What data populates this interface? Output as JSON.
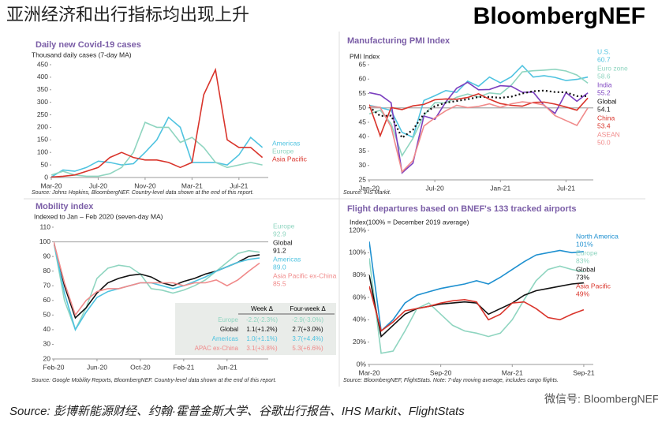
{
  "header": {
    "title": "亚洲经济和出行指标均出现上升",
    "brand": "BloombergNEF"
  },
  "footer": {
    "source": "Source: 彭博新能源财经、约翰·霍普金斯大学、谷歌出行报告、IHS Markit、FlightStats",
    "watermark": "微信号: BloombergNEF"
  },
  "chart_data": [
    {
      "type": "line",
      "title": "Daily new Covid-19 cases",
      "subtitle": "Thousand daily cases (7-day MA)",
      "source": "Source: Johns Hopkins, BloombergNEF. Country-level data shown at the end of this report.",
      "x": [
        0,
        1,
        2,
        3,
        4,
        5,
        6,
        7,
        8,
        9,
        10,
        11,
        12,
        13,
        14,
        15,
        16,
        17,
        18
      ],
      "xlim": [
        0,
        18.5
      ],
      "xticks": [
        {
          "value": 0,
          "label": "Mar-20"
        },
        {
          "value": 4,
          "label": "Jul-20"
        },
        {
          "value": 8,
          "label": "Nov-20"
        },
        {
          "value": 12,
          "label": "Mar-21"
        },
        {
          "value": 16,
          "label": "Jul-21"
        }
      ],
      "ylim": [
        0,
        450
      ],
      "yticks": [
        0,
        50,
        100,
        150,
        200,
        250,
        300,
        350,
        400,
        450
      ],
      "series": [
        {
          "name": "Americas",
          "color": "#4fc3e0",
          "values": [
            2,
            30,
            25,
            40,
            65,
            60,
            50,
            55,
            100,
            150,
            240,
            200,
            60,
            60,
            60,
            50,
            90,
            160,
            120
          ]
        },
        {
          "name": "Europe",
          "color": "#8fd5c0",
          "values": [
            10,
            25,
            10,
            5,
            5,
            15,
            40,
            100,
            220,
            200,
            200,
            140,
            160,
            120,
            60,
            40,
            50,
            60,
            50
          ]
        },
        {
          "name": "Asia Pacific",
          "color": "#d9342b",
          "values": [
            2,
            5,
            10,
            25,
            40,
            80,
            100,
            80,
            70,
            70,
            60,
            40,
            60,
            330,
            430,
            150,
            120,
            120,
            80
          ]
        }
      ]
    },
    {
      "type": "line",
      "title": "Manufacturing PMI Index",
      "subtitle": "PMI Index",
      "source": "Source: IHS Markit.",
      "x": [
        0,
        1,
        2,
        3,
        4,
        5,
        6,
        7,
        8,
        9,
        10,
        11,
        12,
        13,
        14,
        15,
        16,
        17,
        18,
        19,
        20
      ],
      "xlim": [
        0,
        20.5
      ],
      "xticks": [
        {
          "value": 0,
          "label": "Jan-20"
        },
        {
          "value": 6,
          "label": "Jul-20"
        },
        {
          "value": 12,
          "label": "Jan-21"
        },
        {
          "value": 18,
          "label": "Jul-21"
        }
      ],
      "ylim": [
        25,
        65
      ],
      "yticks": [
        25,
        30,
        35,
        40,
        45,
        50,
        55,
        60,
        65
      ],
      "refline": 50,
      "series": [
        {
          "name": "U.S.",
          "end_label": "60.7",
          "color": "#4fc3e0",
          "values": [
            50.9,
            50.1,
            49.1,
            41.5,
            39.8,
            52.6,
            54.2,
            56,
            55.4,
            59.3,
            57.5,
            60.7,
            58.7,
            60.8,
            64.7,
            60.7,
            61.2,
            60.6,
            59.5,
            59.9,
            60.7
          ]
        },
        {
          "name": "Euro zone",
          "end_label": "58.6",
          "color": "#8fd5c0",
          "values": [
            47.9,
            49.2,
            44.5,
            33.4,
            39.4,
            47.4,
            51.8,
            51.7,
            53.7,
            54.8,
            53.8,
            55.2,
            54.8,
            57.9,
            62.5,
            62.9,
            63.1,
            63.4,
            62.8,
            61.4,
            58.6
          ]
        },
        {
          "name": "India",
          "end_label": "55.2",
          "color": "#7b3fbf",
          "values": [
            55.3,
            54.5,
            51.8,
            27.4,
            30.8,
            47.2,
            46,
            52,
            56.8,
            58.9,
            56.3,
            56.4,
            57.7,
            57.5,
            55.4,
            55.5,
            50.8,
            48.1,
            55.3,
            52.3,
            55.2
          ]
        },
        {
          "name": "Global",
          "end_label": "54.1",
          "color": "#111111",
          "dotted": true,
          "values": [
            50.4,
            47.2,
            47.3,
            39.6,
            42.4,
            47.9,
            50.6,
            51.8,
            52.4,
            53,
            53.8,
            53.8,
            53.5,
            53.9,
            55,
            55.8,
            56,
            55.5,
            55.4,
            54.1,
            54.1
          ]
        },
        {
          "name": "China",
          "end_label": "53.4",
          "color": "#d9342b",
          "values": [
            51.1,
            40.3,
            50.1,
            49.4,
            50.7,
            51.2,
            52.8,
            53.1,
            53,
            53.6,
            54.9,
            53,
            51.5,
            50.9,
            50.6,
            51.9,
            52,
            51.3,
            50.3,
            49.2,
            53.4
          ]
        },
        {
          "name": "ASEAN",
          "end_label": "50.0",
          "color": "#f08a8a",
          "values": [
            50.5,
            50.2,
            43.4,
            27.8,
            31.7,
            43.7,
            46.5,
            49,
            50.9,
            50.1,
            50.5,
            51.4,
            50.2,
            51.4,
            52.1,
            51.7,
            51,
            47.3,
            45.6,
            43.9,
            50
          ]
        }
      ]
    },
    {
      "type": "line",
      "title": "Mobility index",
      "subtitle": "Indexed to Jan – Feb 2020 (seven-day MA)",
      "source": "Source: Google Mobility Reports, BloombergNEF. Country-level data shown at the end of this report.",
      "x": [
        0,
        1,
        2,
        3,
        4,
        5,
        6,
        7,
        8,
        9,
        10,
        11,
        12,
        13,
        14,
        15,
        16,
        17,
        18,
        19
      ],
      "xlim": [
        0,
        19.8
      ],
      "xticks": [
        {
          "value": 0,
          "label": "Feb-20"
        },
        {
          "value": 4,
          "label": "Jun-20"
        },
        {
          "value": 8,
          "label": "Oct-20"
        },
        {
          "value": 12,
          "label": "Feb-21"
        },
        {
          "value": 16,
          "label": "Jun-21"
        }
      ],
      "ylim": [
        20,
        110
      ],
      "yticks": [
        20,
        30,
        40,
        50,
        60,
        70,
        80,
        90,
        100,
        110
      ],
      "refline": 100,
      "series": [
        {
          "name": "Europe",
          "end_label": "92.9",
          "color": "#8fd5c0",
          "values": [
            100,
            60,
            40,
            55,
            75,
            82,
            84,
            83,
            78,
            68,
            67,
            65,
            67,
            70,
            74,
            80,
            86,
            92,
            94,
            92.9
          ]
        },
        {
          "name": "Global",
          "end_label": "91.2",
          "color": "#111111",
          "values": [
            100,
            70,
            48,
            55,
            65,
            72,
            75,
            77,
            78,
            76,
            72,
            70,
            73,
            75,
            78,
            80,
            83,
            86,
            90,
            91.2
          ]
        },
        {
          "name": "Americas",
          "end_label": "89.0",
          "color": "#4fc3e0",
          "values": [
            100,
            65,
            40,
            52,
            62,
            66,
            68,
            70,
            72,
            72,
            70,
            68,
            70,
            73,
            76,
            80,
            83,
            86,
            88,
            89
          ]
        },
        {
          "name": "Asia Pacific ex-China",
          "end_label": "85.5",
          "color": "#f08a8a",
          "values": [
            100,
            72,
            50,
            60,
            66,
            68,
            68,
            70,
            72,
            72,
            72,
            72,
            70,
            72,
            72,
            74,
            70,
            74,
            80,
            85.5
          ]
        }
      ],
      "table": {
        "header": [
          "Week Δ",
          "Four-week Δ"
        ],
        "rows": [
          [
            "Europe",
            "-2.2(-2.3%)",
            "-2.9(-3.0%)"
          ],
          [
            "Global",
            "1.1(+1.2%)",
            "2.7(+3.0%)"
          ],
          [
            "Americas",
            "1.0(+1.1%)",
            "3.7(+4.4%)"
          ],
          [
            "APAC ex-China",
            "3.1(+3.8%)",
            "5.3(+6.6%)"
          ]
        ]
      }
    },
    {
      "type": "line",
      "title": "Flight departures based on BNEF's 133 tracked airports",
      "subtitle": "Index(100% = December 2019 average)",
      "source": "Source: BloombergNEF, FlightStats. Note: 7-day moving average, includes cargo flights.",
      "x": [
        0,
        1,
        2,
        3,
        4,
        5,
        6,
        7,
        8,
        9,
        10,
        11,
        12,
        13,
        14,
        15,
        16,
        17,
        18
      ],
      "xlim": [
        0,
        18.8
      ],
      "xticks": [
        {
          "value": 0,
          "label": "Mar-20"
        },
        {
          "value": 6,
          "label": "Sep-20"
        },
        {
          "value": 12,
          "label": "Mar-21"
        },
        {
          "value": 18,
          "label": "Sep-21"
        }
      ],
      "ylim": [
        0,
        120
      ],
      "yticks": [
        {
          "value": 0,
          "label": "0%"
        },
        {
          "value": 20,
          "label": "20%"
        },
        {
          "value": 40,
          "label": "40%"
        },
        {
          "value": 60,
          "label": "60%"
        },
        {
          "value": 80,
          "label": "80%"
        },
        {
          "value": 100,
          "label": "100%"
        },
        {
          "value": 120,
          "label": "120%"
        }
      ],
      "series": [
        {
          "name": "North America",
          "end_label": "101%",
          "color": "#1e90d0",
          "values": [
            110,
            30,
            40,
            55,
            62,
            65,
            68,
            70,
            72,
            75,
            72,
            78,
            85,
            92,
            98,
            100,
            102,
            100,
            101
          ]
        },
        {
          "name": "Europe",
          "end_label": "83%",
          "color": "#8fd5c0",
          "values": [
            95,
            10,
            12,
            30,
            50,
            55,
            45,
            35,
            30,
            28,
            25,
            28,
            40,
            58,
            75,
            85,
            88,
            85,
            83
          ]
        },
        {
          "name": "Global",
          "end_label": "73%",
          "color": "#111111",
          "values": [
            80,
            25,
            35,
            45,
            50,
            52,
            54,
            55,
            56,
            55,
            45,
            50,
            55,
            62,
            66,
            68,
            70,
            72,
            73
          ]
        },
        {
          "name": "Asia Pacific",
          "end_label": "49%",
          "color": "#d9342b",
          "values": [
            70,
            30,
            38,
            48,
            50,
            52,
            55,
            57,
            58,
            56,
            40,
            45,
            55,
            56,
            50,
            42,
            40,
            45,
            49
          ]
        }
      ]
    }
  ]
}
